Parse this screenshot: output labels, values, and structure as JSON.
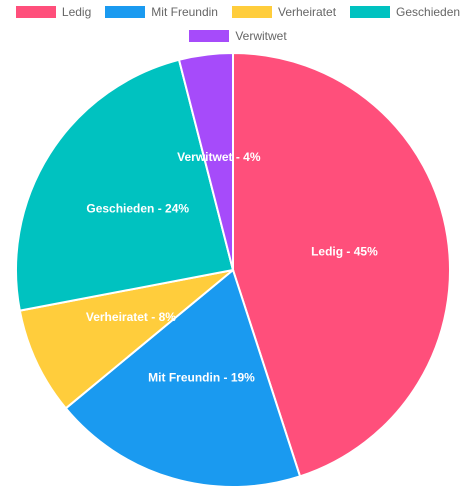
{
  "chart_data": {
    "type": "pie",
    "categories": [
      "Ledig",
      "Mit Freundin",
      "Verheiratet",
      "Geschieden",
      "Verwitwet"
    ],
    "values": [
      45,
      19,
      8,
      24,
      4
    ],
    "slice_labels": [
      "Ledig - 45%",
      "Mit Freundin - 19%",
      "Verheiratet - 8%",
      "Geschieden - 24%",
      "Verwitwet - 4%"
    ],
    "colors": [
      "#ff4f7b",
      "#1a9af0",
      "#ffcd3c",
      "#00c2c0",
      "#a64bfa"
    ],
    "legend_position": "top"
  }
}
